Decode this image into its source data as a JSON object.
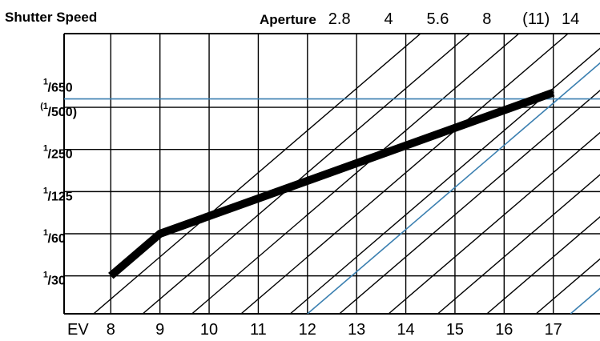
{
  "chart_data": {
    "type": "line",
    "title": "",
    "ylabel": "Shutter Speed",
    "aperture_label": "Aperture",
    "xlabel": "EV",
    "ev_ticks": [
      "8",
      "9",
      "10",
      "11",
      "12",
      "13",
      "14",
      "15",
      "16",
      "17"
    ],
    "ev_range": [
      7.05,
      17.95
    ],
    "aperture_ticks": [
      {
        "label": "2.8",
        "ev": 12.65
      },
      {
        "label": "4",
        "ev": 13.65
      },
      {
        "label": "5.6",
        "ev": 14.65
      },
      {
        "label": "8",
        "ev": 15.65
      },
      {
        "label": "(11)",
        "ev": 16.65
      },
      {
        "label": "14",
        "ev": 17.35
      }
    ],
    "speed_ticks": [
      {
        "num": "1",
        "den": "30",
        "stop": 0,
        "gridline": true
      },
      {
        "num": "1",
        "den": "60",
        "stop": 1,
        "gridline": true
      },
      {
        "num": "1",
        "den": "125",
        "stop": 2,
        "gridline": true
      },
      {
        "num": "1",
        "den": "250",
        "stop": 3,
        "gridline": true
      },
      {
        "num": "(1",
        "den": "500)",
        "stop": 4,
        "gridline": true
      },
      {
        "num": "1",
        "den": "650",
        "stop": 4.3,
        "gridline": false
      }
    ],
    "speed_range": [
      -0.9,
      5.75
    ],
    "series": [
      {
        "name": "",
        "color": "#000000",
        "points": [
          {
            "ev": 8,
            "stop": 0
          },
          {
            "ev": 9,
            "stop": 1
          },
          {
            "ev": 17,
            "stop": 4.35
          }
        ]
      }
    ],
    "reference_lines": [
      {
        "color": "#3a7fb0",
        "kind": "horizontal",
        "stop": 4.2
      },
      {
        "color": "#3a7fb0",
        "kind": "diagonal",
        "ev_at_bottom": 12
      },
      {
        "color": "#3a7fb0",
        "kind": "diagonal",
        "ev_at_bottom": 17.35
      }
    ],
    "diagonal_aperture_lines": [
      7.65,
      8.65,
      9.65,
      10.65,
      11.65,
      12.65,
      13.65,
      14.65,
      15.65,
      16.65
    ],
    "grid": true,
    "colors": {
      "main": "#000000",
      "grid": "#000000",
      "accent": "#3a7fb0"
    }
  }
}
